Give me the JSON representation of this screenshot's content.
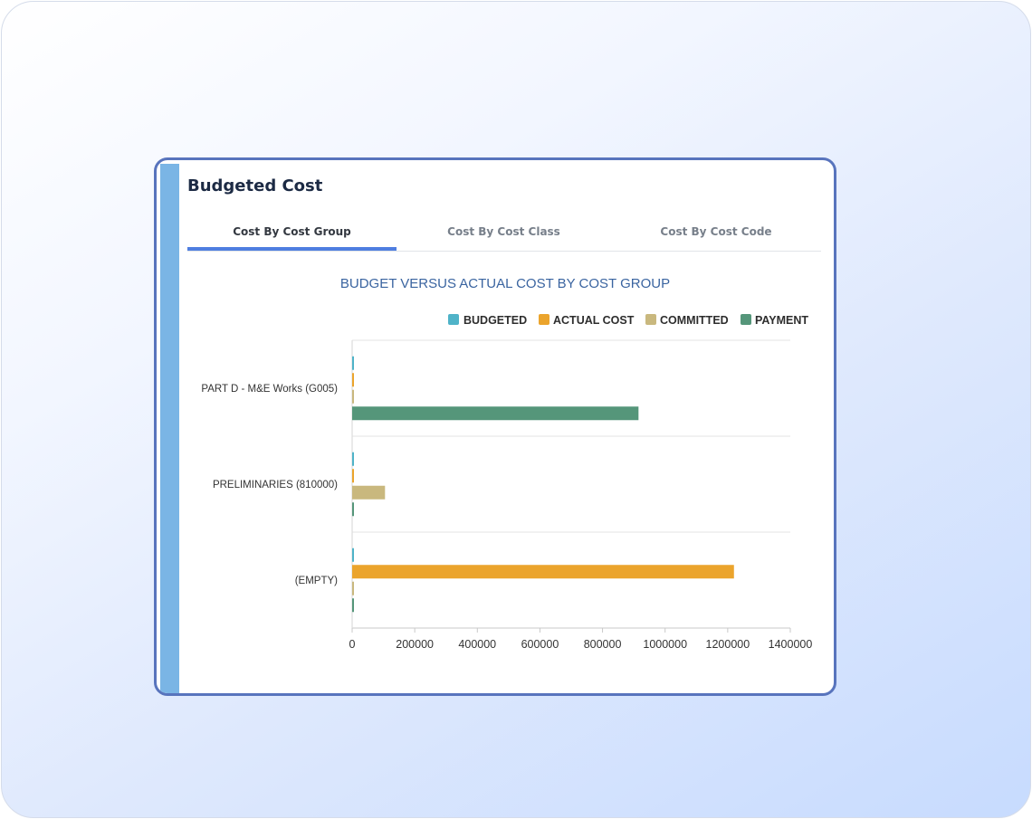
{
  "card": {
    "title": "Budgeted Cost",
    "tabs": [
      {
        "label": "Cost By Cost Group",
        "active": true
      },
      {
        "label": "Cost By Cost Class",
        "active": false
      },
      {
        "label": "Cost By Cost Code",
        "active": false
      }
    ]
  },
  "colors": {
    "accent_tab": "#4f7ee0",
    "card_border": "#5874bd",
    "stripe": "#7ab5e5"
  },
  "chart_data": {
    "type": "bar",
    "orientation": "horizontal",
    "title": "BUDGET VERSUS ACTUAL COST BY COST GROUP",
    "categories": [
      "PART D - M&E Works (G005)",
      "PRELIMINARIES (810000)",
      "(EMPTY)"
    ],
    "series": [
      {
        "name": "BUDGETED",
        "color": "#4fb3c8",
        "values": [
          0,
          0,
          0
        ]
      },
      {
        "name": "ACTUAL COST",
        "color": "#eba42c",
        "values": [
          0,
          0,
          1220000
        ]
      },
      {
        "name": "COMMITTED",
        "color": "#c9b87e",
        "values": [
          0,
          105000,
          0
        ]
      },
      {
        "name": "PAYMENT",
        "color": "#55967a",
        "values": [
          915000,
          0,
          0
        ]
      }
    ],
    "xlim": [
      0,
      1400000
    ],
    "xticks": [
      "0",
      "200000",
      "400000",
      "600000",
      "800000",
      "1000000",
      "1200000",
      "1400000"
    ],
    "grid": true,
    "legend": "top-right"
  }
}
